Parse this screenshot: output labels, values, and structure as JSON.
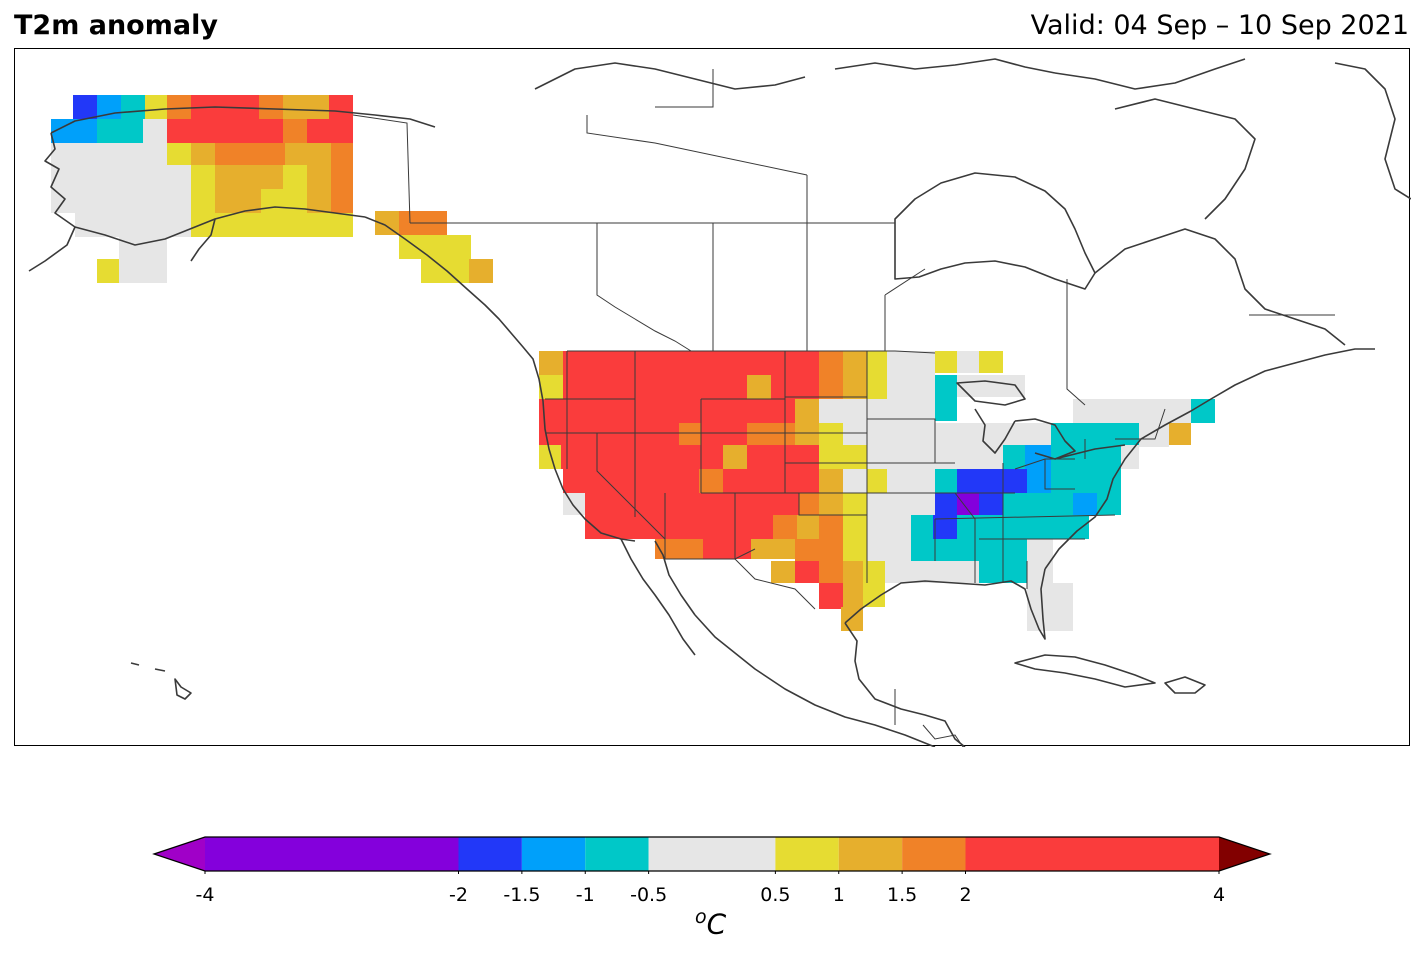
{
  "header": {
    "title": "T2m anomaly",
    "valid": "Valid: 04 Sep – 10 Sep 2021"
  },
  "colorbar": {
    "unit_sup": "o",
    "unit": "C",
    "ticks": [
      "-4",
      "-2",
      "-1.5",
      "-1",
      "-0.5",
      "0.5",
      "1",
      "1.5",
      "2",
      "4"
    ],
    "bins": [
      {
        "from": -4,
        "to": -2,
        "color": "#8400dc"
      },
      {
        "from": -2,
        "to": -1.5,
        "color": "#2238f8"
      },
      {
        "from": -1.5,
        "to": -1,
        "color": "#00a0fa"
      },
      {
        "from": -1,
        "to": -0.5,
        "color": "#00c8c8"
      },
      {
        "from": -0.5,
        "to": 0.5,
        "color": "#e6e6e6"
      },
      {
        "from": 0.5,
        "to": 1,
        "color": "#e6dc32"
      },
      {
        "from": 1,
        "to": 1.5,
        "color": "#e6af2d"
      },
      {
        "from": 1.5,
        "to": 2,
        "color": "#f08228"
      },
      {
        "from": 2,
        "to": 4,
        "color": "#fa3c3c"
      }
    ],
    "under_color": "#a000c8",
    "over_color": "#820000"
  }
}
